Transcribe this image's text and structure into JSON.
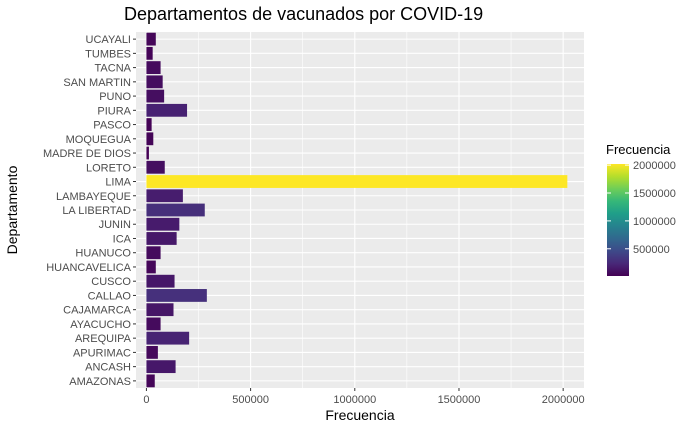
{
  "chart_data": {
    "type": "bar",
    "orientation": "horizontal",
    "title": "Departamentos de vacunados por COVID-19",
    "xlabel": "Frecuencia",
    "ylabel": "Departamento",
    "categories": [
      "AMAZONAS",
      "ANCASH",
      "APURIMAC",
      "AREQUIPA",
      "AYACUCHO",
      "CAJAMARCA",
      "CALLAO",
      "CUSCO",
      "HUANCAVELICA",
      "HUANUCO",
      "ICA",
      "JUNIN",
      "LA LIBERTAD",
      "LAMBAYEQUE",
      "LIMA",
      "LORETO",
      "MADRE DE DIOS",
      "MOQUEGUA",
      "PASCO",
      "PIURA",
      "PUNO",
      "SAN MARTIN",
      "TACNA",
      "TUMBES",
      "UCAYALI"
    ],
    "values": [
      40000,
      140000,
      55000,
      205000,
      68000,
      130000,
      290000,
      135000,
      45000,
      68000,
      145000,
      158000,
      280000,
      175000,
      2020000,
      88000,
      12000,
      33000,
      25000,
      195000,
      85000,
      78000,
      68000,
      30000,
      45000
    ],
    "xlim": [
      -50000,
      2100000
    ],
    "xticks": [
      0,
      500000,
      1000000,
      1500000,
      2000000
    ],
    "xtick_labels": [
      "0",
      "500000",
      "1000000",
      "1500000",
      "2000000"
    ],
    "grid": true,
    "colorscale": "viridis",
    "colors": {
      "panel_bg": "#ebebeb",
      "grid_major": "#ffffff",
      "viridis": [
        "#440154",
        "#482878",
        "#3e4989",
        "#31688e",
        "#26828e",
        "#1f9e89",
        "#35b779",
        "#6ece58",
        "#b5de2b",
        "#fde725"
      ]
    },
    "legend": {
      "title": "Frecuencia",
      "position": "right",
      "range": [
        12000,
        2020000
      ],
      "breaks": [
        500000,
        1000000,
        1500000,
        2000000
      ],
      "labels": [
        "500000",
        "1000000",
        "1500000",
        "2000000"
      ]
    }
  }
}
